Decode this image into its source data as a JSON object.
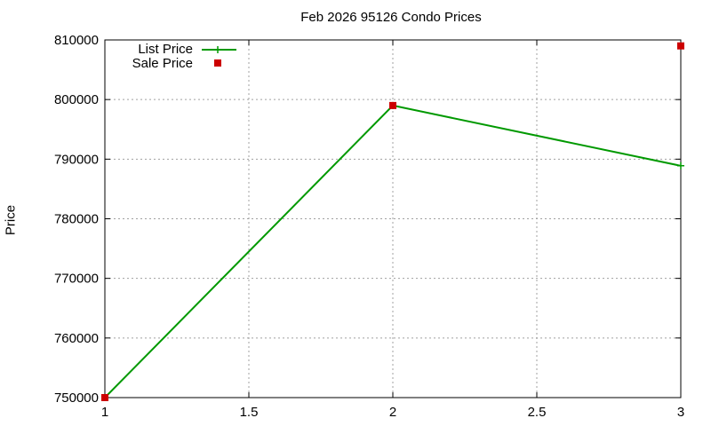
{
  "chart_data": {
    "type": "line",
    "title": "Feb 2026 95126 Condo Prices",
    "xlabel": "",
    "ylabel": "Price",
    "xlim": [
      1,
      3
    ],
    "ylim": [
      750000,
      810000
    ],
    "xticks": [
      "1",
      "1.5",
      "2",
      "2.5",
      "3"
    ],
    "yticks": [
      "750000",
      "760000",
      "770000",
      "780000",
      "790000",
      "800000",
      "810000"
    ],
    "grid": true,
    "legend_position": "top-left",
    "series": [
      {
        "name": "List Price",
        "marker": "plus",
        "color": "#009900",
        "x": [
          1,
          2,
          3
        ],
        "y": [
          750000,
          799000,
          788888
        ]
      },
      {
        "name": "Sale Price",
        "marker": "square",
        "color": "#cc0000",
        "x": [
          1,
          2,
          3
        ],
        "y": [
          750000,
          799000,
          809000
        ]
      }
    ]
  }
}
